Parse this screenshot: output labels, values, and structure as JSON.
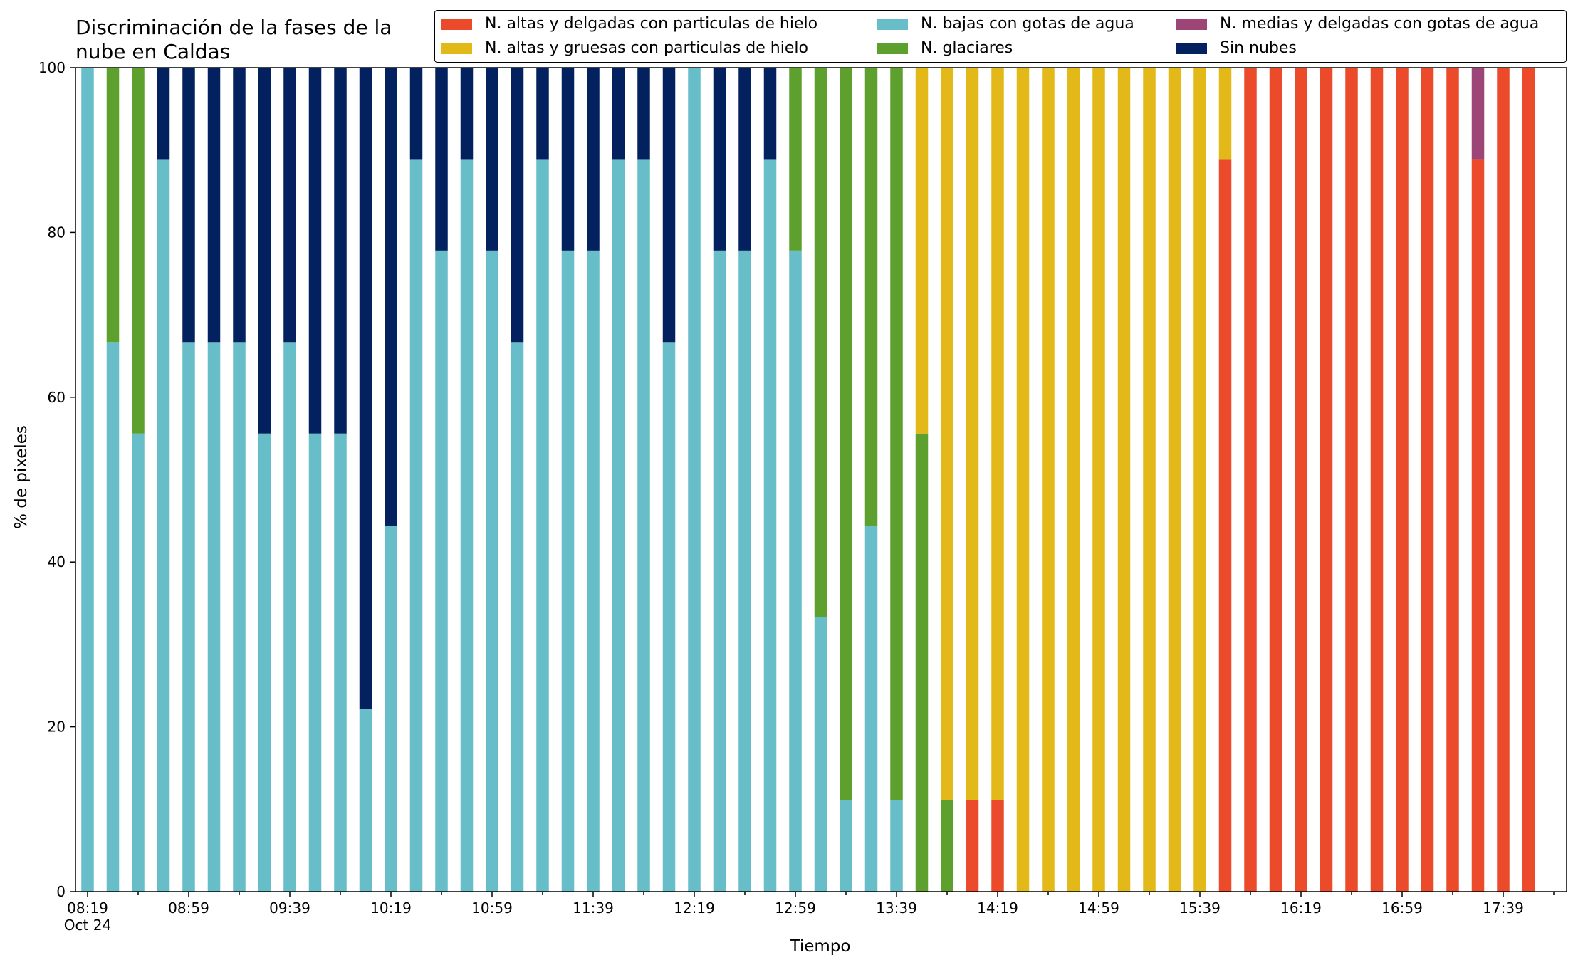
{
  "chart_data": {
    "type": "bar",
    "stacked": true,
    "title_lines": [
      "Discriminación de la fases de la",
      "nube en Caldas"
    ],
    "xlabel": "Tiempo",
    "ylabel": "% de pixeles",
    "ylim": [
      0,
      100
    ],
    "yticks": [
      "0",
      "20",
      "40",
      "60",
      "80",
      "100"
    ],
    "xtick_labels": [
      "08:19\nOct 24",
      "08:59",
      "09:39",
      "10:19",
      "10:59",
      "11:39",
      "12:19",
      "12:59",
      "13:39",
      "14:19",
      "14:59",
      "15:39",
      "16:19",
      "16:59",
      "17:39"
    ],
    "grid": false,
    "legend_position": "top-right",
    "categories": [
      "08:19",
      "08:29",
      "08:39",
      "08:49",
      "08:59",
      "09:09",
      "09:19",
      "09:29",
      "09:39",
      "09:49",
      "09:59",
      "10:09",
      "10:19",
      "10:29",
      "10:39",
      "10:49",
      "10:59",
      "11:09",
      "11:19",
      "11:29",
      "11:39",
      "11:49",
      "11:59",
      "12:09",
      "12:19",
      "12:29",
      "12:39",
      "12:49",
      "12:59",
      "13:09",
      "13:19",
      "13:29",
      "13:39",
      "13:49",
      "13:59",
      "14:09",
      "14:19",
      "14:29",
      "14:39",
      "14:49",
      "14:59",
      "15:09",
      "15:19",
      "15:29",
      "15:39",
      "15:49",
      "15:59",
      "16:09",
      "16:19",
      "16:29",
      "16:39",
      "16:49",
      "16:59",
      "17:09",
      "17:19",
      "17:29",
      "17:39",
      "17:49"
    ],
    "series": [
      {
        "name": "N. bajas con gotas de agua",
        "color": "#67BEC8",
        "values": [
          100,
          66.7,
          55.6,
          88.9,
          66.7,
          66.7,
          66.7,
          55.6,
          66.7,
          55.6,
          55.6,
          22.2,
          44.4,
          88.9,
          77.8,
          88.9,
          77.8,
          66.7,
          88.9,
          77.8,
          77.8,
          88.9,
          88.9,
          66.7,
          100,
          77.8,
          77.8,
          88.9,
          77.8,
          33.3,
          11.1,
          44.4,
          11.1,
          0,
          0,
          0,
          0,
          0,
          0,
          0,
          0,
          0,
          0,
          0,
          0,
          0,
          0,
          0,
          0,
          0,
          0,
          0,
          0,
          0,
          0,
          0,
          0,
          0
        ]
      },
      {
        "name": "N. glaciares",
        "color": "#5DA02E",
        "values": [
          0,
          33.3,
          44.4,
          0,
          0,
          0,
          0,
          0,
          0,
          0,
          0,
          0,
          0,
          0,
          0,
          0,
          0,
          0,
          0,
          0,
          0,
          0,
          0,
          0,
          0,
          0,
          0,
          0,
          22.2,
          66.7,
          88.9,
          55.6,
          88.9,
          55.6,
          11.1,
          0,
          0,
          0,
          0,
          0,
          0,
          0,
          0,
          0,
          0,
          0,
          0,
          0,
          0,
          0,
          0,
          0,
          0,
          0,
          0,
          0,
          0,
          0
        ]
      },
      {
        "name": "Sin nubes",
        "color": "#03215E",
        "values": [
          0,
          0,
          0,
          11.1,
          33.3,
          33.3,
          33.3,
          44.4,
          33.3,
          44.4,
          44.4,
          77.8,
          55.6,
          11.1,
          22.2,
          11.1,
          22.2,
          33.3,
          11.1,
          22.2,
          22.2,
          11.1,
          11.1,
          33.3,
          0,
          22.2,
          22.2,
          11.1,
          0,
          0,
          0,
          0,
          0,
          0,
          0,
          0,
          0,
          0,
          0,
          0,
          0,
          0,
          0,
          0,
          0,
          0,
          0,
          0,
          0,
          0,
          0,
          0,
          0,
          0,
          0,
          0,
          0,
          0
        ]
      },
      {
        "name": "N. altas y delgadas con particulas de hielo",
        "color": "#EB4A2B",
        "values": [
          0,
          0,
          0,
          0,
          0,
          0,
          0,
          0,
          0,
          0,
          0,
          0,
          0,
          0,
          0,
          0,
          0,
          0,
          0,
          0,
          0,
          0,
          0,
          0,
          0,
          0,
          0,
          0,
          0,
          0,
          0,
          0,
          0,
          0,
          0,
          11.1,
          11.1,
          0,
          0,
          0,
          0,
          0,
          0,
          0,
          0,
          88.9,
          100,
          100,
          100,
          100,
          100,
          100,
          100,
          100,
          100,
          88.9,
          100,
          100
        ]
      },
      {
        "name": "N. altas y gruesas con particulas de hielo",
        "color": "#E3B819",
        "values": [
          0,
          0,
          0,
          0,
          0,
          0,
          0,
          0,
          0,
          0,
          0,
          0,
          0,
          0,
          0,
          0,
          0,
          0,
          0,
          0,
          0,
          0,
          0,
          0,
          0,
          0,
          0,
          0,
          0,
          0,
          0,
          0,
          0,
          44.4,
          88.9,
          88.9,
          88.9,
          100,
          100,
          100,
          100,
          100,
          100,
          100,
          100,
          11.1,
          0,
          0,
          0,
          0,
          0,
          0,
          0,
          0,
          0,
          0,
          0,
          0
        ]
      },
      {
        "name": "N. medias y delgadas con gotas de agua",
        "color": "#9E4577",
        "values": [
          0,
          0,
          0,
          0,
          0,
          0,
          0,
          0,
          0,
          0,
          0,
          0,
          0,
          0,
          0,
          0,
          0,
          0,
          0,
          0,
          0,
          0,
          0,
          0,
          0,
          0,
          0,
          0,
          0,
          0,
          0,
          0,
          0,
          0,
          0,
          0,
          0,
          0,
          0,
          0,
          0,
          0,
          0,
          0,
          0,
          0,
          0,
          0,
          0,
          0,
          0,
          0,
          0,
          0,
          0,
          11.1,
          0,
          0
        ]
      }
    ]
  },
  "legend": {
    "items": [
      {
        "label": "N. altas y delgadas con particulas de hielo",
        "color": "#EB4A2B"
      },
      {
        "label": "N. altas y gruesas con particulas de hielo",
        "color": "#E3B819"
      },
      {
        "label": "N. bajas con gotas de agua",
        "color": "#67BEC8"
      },
      {
        "label": "N. glaciares",
        "color": "#5DA02E"
      },
      {
        "label": "N. medias y delgadas con gotas de agua",
        "color": "#9E4577"
      },
      {
        "label": "Sin nubes",
        "color": "#03215E"
      }
    ]
  }
}
